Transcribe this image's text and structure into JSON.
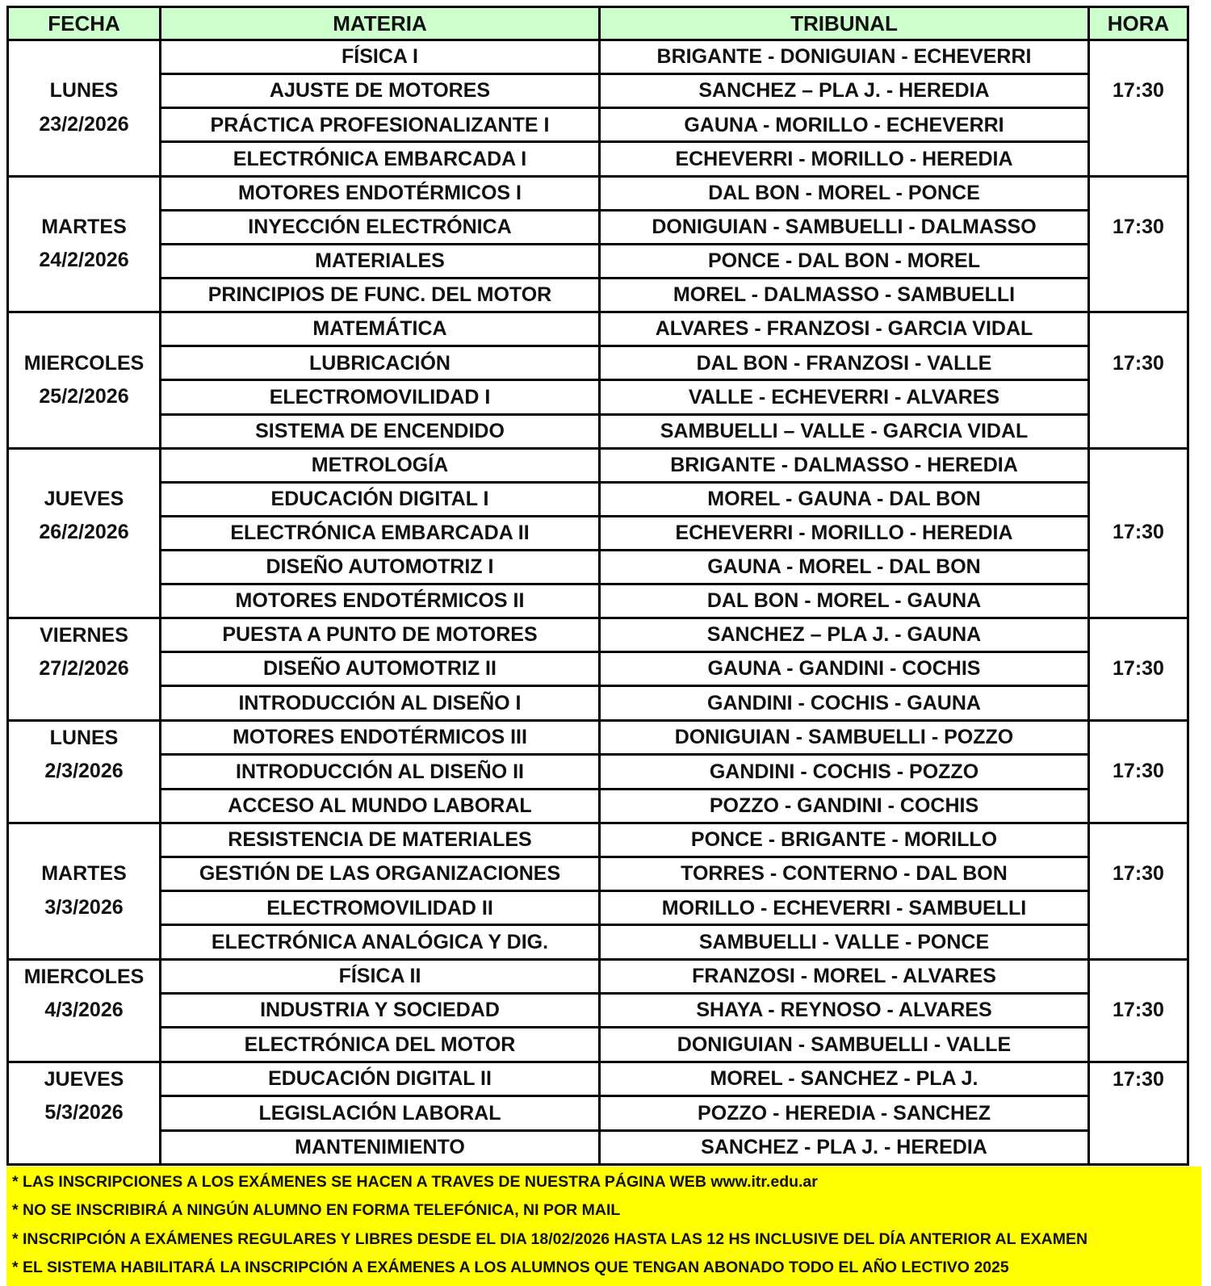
{
  "headers": {
    "fecha": "FECHA",
    "materia": "MATERIA",
    "tribunal": "TRIBUNAL",
    "hora": "HORA"
  },
  "colors": {
    "header_bg": "#ccffcc",
    "footer_bg": "#ffff00"
  },
  "groups": [
    {
      "day": "LUNES",
      "date": "23/2/2026",
      "day_line": 1,
      "hora": "17:30",
      "hora_line": 1,
      "rows": [
        [
          "FÍSICA I",
          "BRIGANTE - DONIGUIAN - ECHEVERRI"
        ],
        [
          "AJUSTE DE MOTORES",
          "SANCHEZ – PLA J. - HEREDIA"
        ],
        [
          "PRÁCTICA PROFESIONALIZANTE I",
          "GAUNA - MORILLO - ECHEVERRI"
        ],
        [
          "ELECTRÓNICA EMBARCADA I",
          "ECHEVERRI - MORILLO - HEREDIA"
        ]
      ]
    },
    {
      "day": "MARTES",
      "date": "24/2/2026",
      "day_line": 1,
      "hora": "17:30",
      "hora_line": 1,
      "rows": [
        [
          "MOTORES ENDOTÉRMICOS I",
          "DAL BON - MOREL - PONCE"
        ],
        [
          "INYECCIÓN ELECTRÓNICA",
          "DONIGUIAN - SAMBUELLI - DALMASSO"
        ],
        [
          "MATERIALES",
          "PONCE - DAL BON - MOREL"
        ],
        [
          "PRINCIPIOS DE FUNC. DEL MOTOR",
          "MOREL - DALMASSO - SAMBUELLI"
        ]
      ]
    },
    {
      "day": "MIERCOLES",
      "date": "25/2/2026",
      "day_line": 1,
      "hora": "17:30",
      "hora_line": 1,
      "rows": [
        [
          "MATEMÁTICA",
          "ALVARES - FRANZOSI - GARCIA VIDAL"
        ],
        [
          "LUBRICACIÓN",
          "DAL BON -  FRANZOSI - VALLE"
        ],
        [
          "ELECTROMOVILIDAD I",
          "VALLE - ECHEVERRI - ALVARES"
        ],
        [
          "SISTEMA DE ENCENDIDO",
          "SAMBUELLI – VALLE - GARCIA VIDAL"
        ]
      ]
    },
    {
      "day": "JUEVES",
      "date": "26/2/2026",
      "day_line": 1,
      "hora": "17:30",
      "hora_line": 2,
      "rows": [
        [
          "METROLOGÍA",
          "BRIGANTE - DALMASSO - HEREDIA"
        ],
        [
          "EDUCACIÓN DIGITAL I",
          "MOREL - GAUNA - DAL BON"
        ],
        [
          "ELECTRÓNICA EMBARCADA II",
          "ECHEVERRI - MORILLO - HEREDIA"
        ],
        [
          "DISEÑO AUTOMOTRIZ I",
          "GAUNA - MOREL - DAL BON"
        ],
        [
          "MOTORES ENDOTÉRMICOS II",
          "DAL BON - MOREL - GAUNA"
        ]
      ]
    },
    {
      "day": "VIERNES",
      "date": "27/2/2026",
      "day_line": 0,
      "hora": "17:30",
      "hora_line": 1,
      "rows": [
        [
          "PUESTA A PUNTO DE MOTORES",
          "SANCHEZ – PLA J. - GAUNA"
        ],
        [
          "DISEÑO AUTOMOTRIZ II",
          "GAUNA - GANDINI - COCHIS"
        ],
        [
          "INTRODUCCIÓN AL DISEÑO I",
          "GANDINI - COCHIS - GAUNA"
        ]
      ]
    },
    {
      "day": "LUNES",
      "date": "2/3/2026",
      "day_line": 0,
      "hora": "17:30",
      "hora_line": 1,
      "rows": [
        [
          "MOTORES ENDOTÉRMICOS III",
          "DONIGUIAN - SAMBUELLI - POZZO"
        ],
        [
          "INTRODUCCIÓN AL DISEÑO II",
          "GANDINI - COCHIS - POZZO"
        ],
        [
          "ACCESO AL MUNDO LABORAL",
          "POZZO - GANDINI - COCHIS"
        ]
      ]
    },
    {
      "day": "MARTES",
      "date": "3/3/2026",
      "day_line": 1,
      "hora": "17:30",
      "hora_line": 1,
      "rows": [
        [
          "RESISTENCIA DE MATERIALES",
          "PONCE - BRIGANTE - MORILLO"
        ],
        [
          "GESTIÓN DE LAS ORGANIZACIONES",
          "TORRES - CONTERNO - DAL BON"
        ],
        [
          "ELECTROMOVILIDAD II",
          "MORILLO - ECHEVERRI - SAMBUELLI"
        ],
        [
          "ELECTRÓNICA ANALÓGICA Y DIG.",
          "SAMBUELLI - VALLE - PONCE"
        ]
      ]
    },
    {
      "day": "MIERCOLES",
      "date": "4/3/2026",
      "day_line": 0,
      "hora": "17:30",
      "hora_line": 1,
      "rows": [
        [
          "FÍSICA II",
          "FRANZOSI - MOREL - ALVARES"
        ],
        [
          "INDUSTRIA Y SOCIEDAD",
          "SHAYA - REYNOSO - ALVARES"
        ],
        [
          "ELECTRÓNICA DEL MOTOR",
          "DONIGUIAN - SAMBUELLI - VALLE"
        ]
      ]
    },
    {
      "day": "JUEVES",
      "date": "5/3/2026",
      "day_line": 0,
      "hora": "17:30",
      "hora_line": 0,
      "rows": [
        [
          "EDUCACIÓN DIGITAL II",
          "MOREL - SANCHEZ - PLA J."
        ],
        [
          "LEGISLACIÓN LABORAL",
          "POZZO - HEREDIA - SANCHEZ"
        ],
        [
          "MANTENIMIENTO",
          "SANCHEZ -  PLA J.  - HEREDIA"
        ]
      ]
    }
  ],
  "footer": [
    "* LAS INSCRIPCIONES A LOS EXÁMENES SE HACEN A TRAVES DE NUESTRA PÁGINA WEB www.itr.edu.ar",
    "* NO SE INSCRIBIRÁ A NINGÚN ALUMNO EN FORMA TELEFÓNICA, NI POR MAIL",
    "* INSCRIPCIÓN A EXÁMENES REGULARES Y LIBRES DESDE EL DIA 18/02/2026 HASTA LAS 12 HS INCLUSIVE DEL DÍA ANTERIOR AL EXAMEN",
    "* EL SISTEMA HABILITARÁ LA INSCRIPCIÓN A EXÁMENES  A LOS ALUMNOS QUE TENGAN ABONADO TODO EL AÑO LECTIVO 2025"
  ]
}
